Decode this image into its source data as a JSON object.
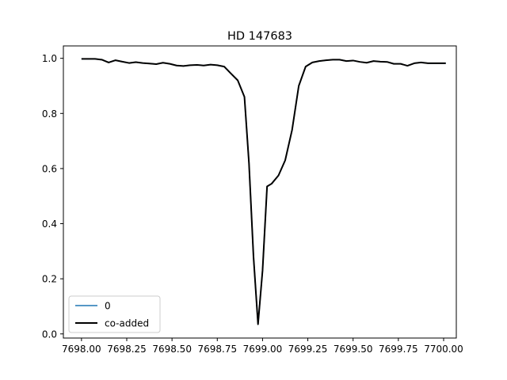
{
  "chart_data": {
    "type": "line",
    "title": "HD 147683",
    "xlabel": "",
    "ylabel": "",
    "xlim": [
      7697.9,
      7700.07
    ],
    "ylim": [
      -0.015,
      1.045
    ],
    "x_tick_labels": [
      "7698.00",
      "7698.25",
      "7698.50",
      "7698.75",
      "7699.00",
      "7699.25",
      "7699.50",
      "7699.75",
      "7700.00"
    ],
    "x_ticks": [
      7698.0,
      7698.25,
      7698.5,
      7698.75,
      7699.0,
      7699.25,
      7699.5,
      7699.75,
      7700.0
    ],
    "y_tick_labels": [
      "0.0",
      "0.2",
      "0.4",
      "0.6",
      "0.8",
      "1.0"
    ],
    "y_ticks": [
      0.0,
      0.2,
      0.4,
      0.6,
      0.8,
      1.0
    ],
    "grid": false,
    "legend_placement": "lower-left",
    "series": [
      {
        "name": "0",
        "color": "#1f77b4",
        "x": [
          7698.0,
          7698.038,
          7698.075,
          7698.113,
          7698.15,
          7698.188,
          7698.225,
          7698.263,
          7698.3,
          7698.338,
          7698.375,
          7698.413,
          7698.45,
          7698.488,
          7698.525,
          7698.563,
          7698.6,
          7698.638,
          7698.675,
          7698.713,
          7698.75,
          7698.788,
          7698.825,
          7698.863,
          7698.9,
          7698.925,
          7698.95,
          7698.975,
          7699.0,
          7699.025,
          7699.05,
          7699.088,
          7699.125,
          7699.163,
          7699.2,
          7699.238,
          7699.275,
          7699.313,
          7699.35,
          7699.388,
          7699.425,
          7699.463,
          7699.5,
          7699.538,
          7699.575,
          7699.613,
          7699.65,
          7699.688,
          7699.725,
          7699.763,
          7699.8,
          7699.838,
          7699.875,
          7699.913,
          7699.95,
          7699.988,
          7700.012
        ],
        "y": [
          0.998,
          0.998,
          0.998,
          0.995,
          0.985,
          0.993,
          0.988,
          0.983,
          0.986,
          0.983,
          0.981,
          0.979,
          0.984,
          0.98,
          0.974,
          0.972,
          0.975,
          0.976,
          0.974,
          0.977,
          0.975,
          0.97,
          0.945,
          0.92,
          0.86,
          0.62,
          0.28,
          0.035,
          0.23,
          0.535,
          0.545,
          0.575,
          0.63,
          0.74,
          0.9,
          0.97,
          0.985,
          0.99,
          0.993,
          0.995,
          0.995,
          0.99,
          0.992,
          0.987,
          0.984,
          0.99,
          0.988,
          0.987,
          0.98,
          0.98,
          0.973,
          0.982,
          0.985,
          0.982,
          0.982,
          0.982,
          0.982
        ]
      },
      {
        "name": "co-added",
        "color": "#000000",
        "x": [
          7698.0,
          7698.038,
          7698.075,
          7698.113,
          7698.15,
          7698.188,
          7698.225,
          7698.263,
          7698.3,
          7698.338,
          7698.375,
          7698.413,
          7698.45,
          7698.488,
          7698.525,
          7698.563,
          7698.6,
          7698.638,
          7698.675,
          7698.713,
          7698.75,
          7698.788,
          7698.825,
          7698.863,
          7698.9,
          7698.925,
          7698.95,
          7698.975,
          7699.0,
          7699.025,
          7699.05,
          7699.088,
          7699.125,
          7699.163,
          7699.2,
          7699.238,
          7699.275,
          7699.313,
          7699.35,
          7699.388,
          7699.425,
          7699.463,
          7699.5,
          7699.538,
          7699.575,
          7699.613,
          7699.65,
          7699.688,
          7699.725,
          7699.763,
          7699.8,
          7699.838,
          7699.875,
          7699.913,
          7699.95,
          7699.988,
          7700.012
        ],
        "y": [
          0.998,
          0.998,
          0.998,
          0.995,
          0.985,
          0.993,
          0.988,
          0.983,
          0.986,
          0.983,
          0.981,
          0.979,
          0.984,
          0.98,
          0.974,
          0.972,
          0.975,
          0.976,
          0.974,
          0.977,
          0.975,
          0.97,
          0.945,
          0.92,
          0.86,
          0.62,
          0.28,
          0.035,
          0.23,
          0.535,
          0.545,
          0.575,
          0.63,
          0.74,
          0.9,
          0.97,
          0.985,
          0.99,
          0.993,
          0.995,
          0.995,
          0.99,
          0.992,
          0.987,
          0.984,
          0.99,
          0.988,
          0.987,
          0.98,
          0.98,
          0.973,
          0.982,
          0.985,
          0.982,
          0.982,
          0.982,
          0.982
        ]
      }
    ]
  }
}
